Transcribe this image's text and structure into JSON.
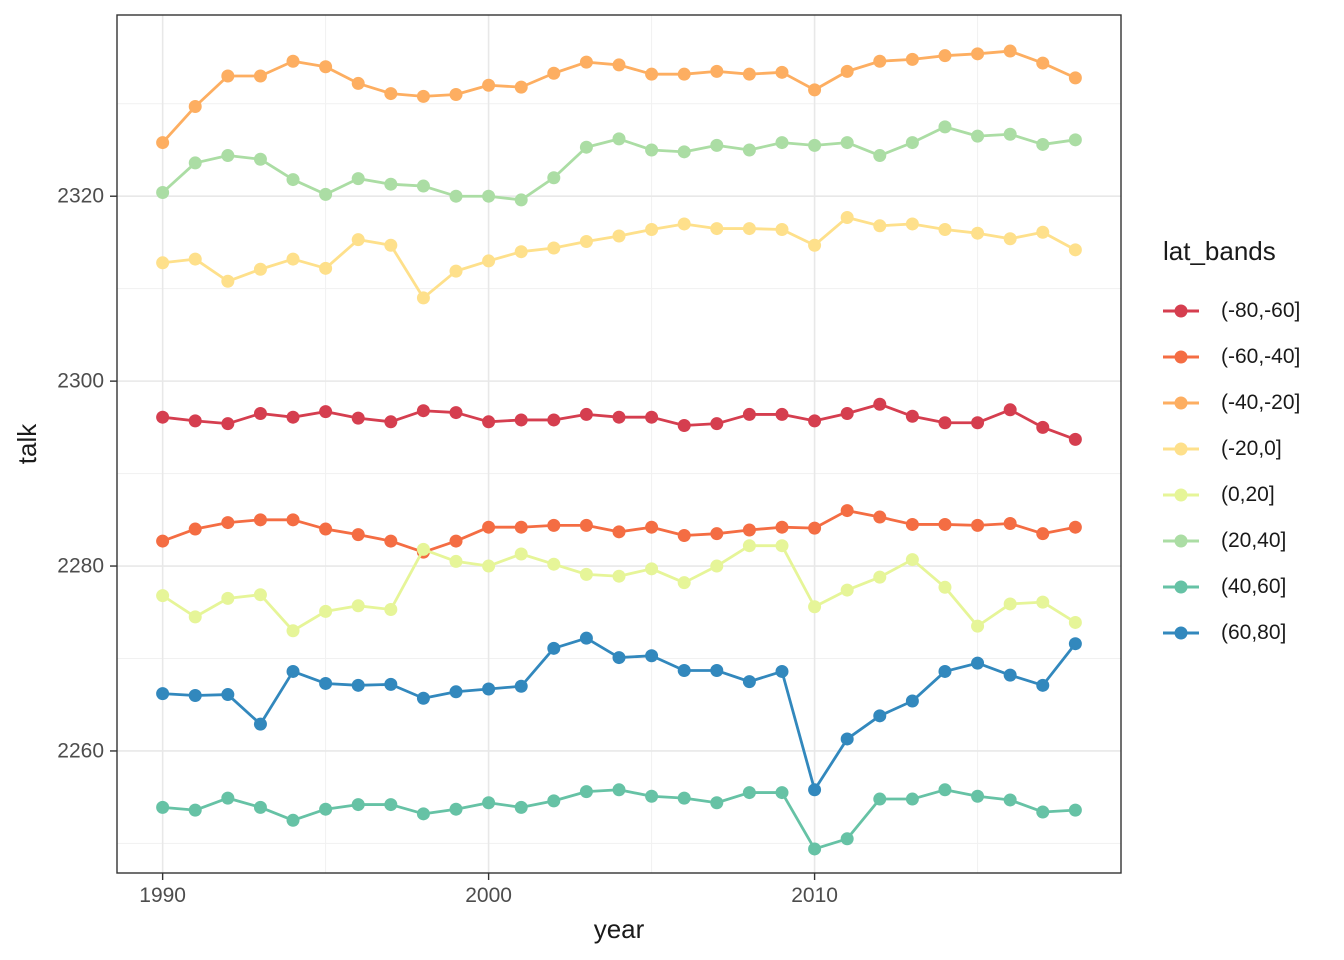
{
  "chart_data": {
    "type": "line",
    "title": "",
    "xlabel": "year",
    "ylabel": "talk",
    "legend_title": "lat_bands",
    "legend_position": "right",
    "grid": true,
    "x": [
      1990,
      1991,
      1992,
      1993,
      1994,
      1995,
      1996,
      1997,
      1998,
      1999,
      2000,
      2001,
      2002,
      2003,
      2004,
      2005,
      2006,
      2007,
      2008,
      2009,
      2010,
      2011,
      2012,
      2013,
      2014,
      2015,
      2016,
      2017,
      2018
    ],
    "x_ticks": [
      1990,
      2000,
      2010
    ],
    "x_minor_ticks": [
      1995,
      2005,
      2015
    ],
    "y_ticks": [
      2260,
      2280,
      2300,
      2320
    ],
    "y_minor_ticks": [
      2250,
      2270,
      2290,
      2310,
      2330
    ],
    "xlim": [
      1988.6,
      2019.4
    ],
    "ylim": [
      2246.8,
      2339.6
    ],
    "series": [
      {
        "name": "(-80,-60]",
        "color": "#D53E4F",
        "values": [
          2296.1,
          2295.7,
          2295.4,
          2296.5,
          2296.1,
          2296.7,
          2296.0,
          2295.6,
          2296.8,
          2296.6,
          2295.6,
          2295.8,
          2295.8,
          2296.4,
          2296.1,
          2296.1,
          2295.2,
          2295.4,
          2296.4,
          2296.4,
          2295.7,
          2296.5,
          2297.5,
          2296.2,
          2295.5,
          2295.5,
          2296.9,
          2295.0,
          2293.7
        ]
      },
      {
        "name": "(-60,-40]",
        "color": "#F46D43",
        "values": [
          2282.7,
          2284.0,
          2284.7,
          2285.0,
          2285.0,
          2284.0,
          2283.4,
          2282.7,
          2281.5,
          2282.7,
          2284.2,
          2284.2,
          2284.4,
          2284.4,
          2283.7,
          2284.2,
          2283.3,
          2283.5,
          2283.9,
          2284.2,
          2284.1,
          2286.0,
          2285.3,
          2284.5,
          2284.5,
          2284.4,
          2284.6,
          2283.5,
          2284.2
        ]
      },
      {
        "name": "(-40,-20]",
        "color": "#FDAE61",
        "values": [
          2325.8,
          2329.7,
          2333.0,
          2333.0,
          2334.6,
          2334.0,
          2332.2,
          2331.1,
          2330.8,
          2331.0,
          2332.0,
          2331.8,
          2333.3,
          2334.5,
          2334.2,
          2333.2,
          2333.2,
          2333.5,
          2333.2,
          2333.4,
          2331.5,
          2333.5,
          2334.6,
          2334.8,
          2335.2,
          2335.4,
          2335.7,
          2334.4,
          2332.8
        ]
      },
      {
        "name": "(-20,0]",
        "color": "#FEE08B",
        "values": [
          2312.8,
          2313.2,
          2310.8,
          2312.1,
          2313.2,
          2312.2,
          2315.3,
          2314.7,
          2309.0,
          2311.9,
          2313.0,
          2314.0,
          2314.4,
          2315.1,
          2315.7,
          2316.4,
          2317.0,
          2316.5,
          2316.5,
          2316.4,
          2314.7,
          2317.7,
          2316.8,
          2317.0,
          2316.4,
          2316.0,
          2315.4,
          2316.1,
          2314.2
        ]
      },
      {
        "name": "(0,20]",
        "color": "#E6F598",
        "values": [
          2276.8,
          2274.5,
          2276.5,
          2276.9,
          2273.0,
          2275.1,
          2275.7,
          2275.3,
          2281.8,
          2280.5,
          2280.0,
          2281.3,
          2280.2,
          2279.1,
          2278.9,
          2279.7,
          2278.2,
          2280.0,
          2282.2,
          2282.2,
          2275.6,
          2277.4,
          2278.8,
          2280.7,
          2277.7,
          2273.5,
          2275.9,
          2276.1,
          2273.9
        ]
      },
      {
        "name": "(20,40]",
        "color": "#ABDDA4",
        "values": [
          2320.4,
          2323.6,
          2324.4,
          2324.0,
          2321.8,
          2320.2,
          2321.9,
          2321.3,
          2321.1,
          2320.0,
          2320.0,
          2319.6,
          2322.0,
          2325.3,
          2326.2,
          2325.0,
          2324.8,
          2325.5,
          2325.0,
          2325.8,
          2325.5,
          2325.8,
          2324.4,
          2325.8,
          2327.5,
          2326.5,
          2326.7,
          2325.6,
          2326.1
        ]
      },
      {
        "name": "(40,60]",
        "color": "#66C2A5",
        "values": [
          2253.9,
          2253.6,
          2254.9,
          2253.9,
          2252.5,
          2253.7,
          2254.2,
          2254.2,
          2253.2,
          2253.7,
          2254.4,
          2253.9,
          2254.6,
          2255.6,
          2255.8,
          2255.1,
          2254.9,
          2254.4,
          2255.5,
          2255.5,
          2249.4,
          2250.5,
          2254.8,
          2254.8,
          2255.8,
          2255.1,
          2254.7,
          2253.4,
          2253.6
        ]
      },
      {
        "name": "(60,80]",
        "color": "#3288BD",
        "values": [
          2266.2,
          2266.0,
          2266.1,
          2262.9,
          2268.6,
          2267.3,
          2267.1,
          2267.2,
          2265.7,
          2266.4,
          2266.7,
          2267.0,
          2271.1,
          2272.2,
          2270.1,
          2270.3,
          2268.7,
          2268.7,
          2267.5,
          2268.6,
          2255.8,
          2261.3,
          2263.8,
          2265.4,
          2268.6,
          2269.5,
          2268.2,
          2267.1,
          2271.6
        ]
      }
    ]
  },
  "layout_colors": {
    "panel_background": "#FFFFFF",
    "panel_border": "#333333",
    "grid_major": "#E8E8E8",
    "grid_minor": "#F1F1F1",
    "tick_mark": "#333333",
    "tick_label": "#4D4D4D"
  }
}
